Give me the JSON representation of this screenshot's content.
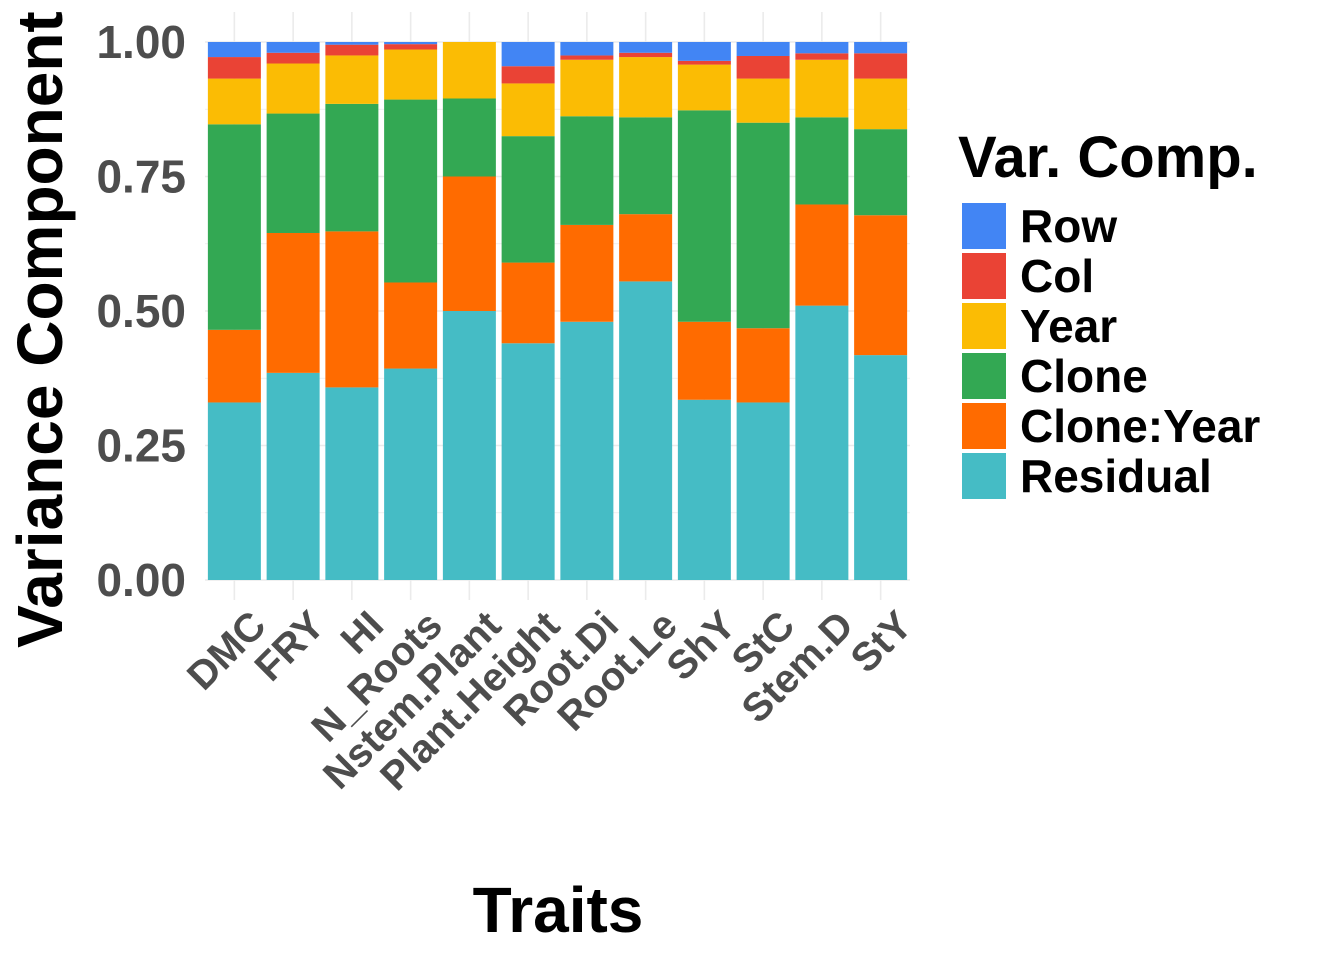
{
  "chart_data": {
    "type": "bar",
    "stacked": true,
    "xlabel": "Traits",
    "ylabel": "Variance Component (",
    "ylim": [
      0,
      1
    ],
    "yticks": [
      "0.00",
      "0.25",
      "0.50",
      "0.75",
      "1.00"
    ],
    "grid": true,
    "legend_position": "right",
    "legend_title": "Var. Comp.",
    "categories": [
      "DMC",
      "FRY",
      "HI",
      "N_Roots",
      "Nstem.Plant",
      "Plant.Height",
      "Root.Di",
      "Root.Le",
      "ShY",
      "StC",
      "Stem.D",
      "StY"
    ],
    "series": [
      {
        "name": "Residual",
        "color": "#45BCC5",
        "values": [
          0.33,
          0.385,
          0.358,
          0.393,
          0.5,
          0.44,
          0.48,
          0.555,
          0.335,
          0.33,
          0.51,
          0.418
        ]
      },
      {
        "name": "Clone:Year",
        "color": "#FF6B00",
        "values": [
          0.135,
          0.26,
          0.29,
          0.16,
          0.25,
          0.15,
          0.18,
          0.125,
          0.145,
          0.138,
          0.188,
          0.26
        ]
      },
      {
        "name": "Clone",
        "color": "#33A853",
        "values": [
          0.382,
          0.222,
          0.237,
          0.34,
          0.145,
          0.235,
          0.202,
          0.18,
          0.393,
          0.382,
          0.162,
          0.16
        ]
      },
      {
        "name": "Year",
        "color": "#FBBC04",
        "values": [
          0.085,
          0.093,
          0.09,
          0.093,
          0.105,
          0.098,
          0.105,
          0.112,
          0.085,
          0.082,
          0.107,
          0.094
        ]
      },
      {
        "name": "Col",
        "color": "#EA4335",
        "values": [
          0.04,
          0.02,
          0.02,
          0.01,
          0.0,
          0.032,
          0.008,
          0.008,
          0.007,
          0.042,
          0.012,
          0.047
        ]
      },
      {
        "name": "Row",
        "color": "#4285F4",
        "values": [
          0.028,
          0.02,
          0.005,
          0.004,
          0.0,
          0.045,
          0.025,
          0.02,
          0.035,
          0.026,
          0.021,
          0.021
        ]
      }
    ],
    "legend_order": [
      "Row",
      "Col",
      "Year",
      "Clone",
      "Clone:Year",
      "Residual"
    ]
  }
}
